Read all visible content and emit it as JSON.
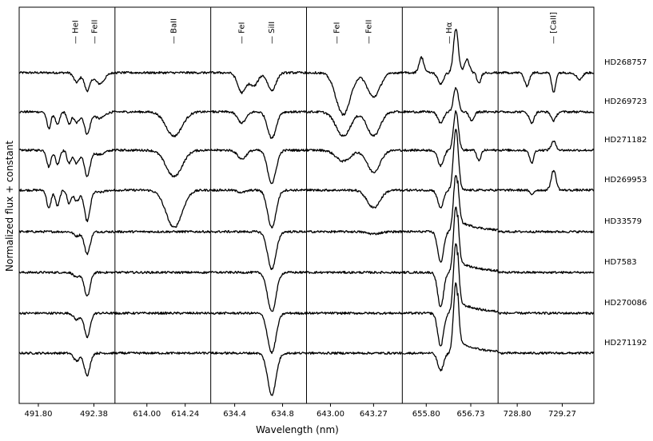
{
  "chart_data": {
    "type": "line",
    "xlabel": "Wavelength (nm)",
    "ylabel": "Normalized flux + constant",
    "grid": false,
    "stars": [
      "HD268757",
      "HD269723",
      "HD271182",
      "HD269953",
      "HD33579",
      "HD7583",
      "HD270086",
      "HD271192"
    ],
    "panels": [
      {
        "xlim": [
          491.6,
          492.6
        ],
        "ticks": [
          {
            "value": 491.8,
            "label": "491.80"
          },
          {
            "value": 492.38,
            "label": "492.38"
          }
        ],
        "lines": [
          {
            "label": "— HeI",
            "x": 492.19
          },
          {
            "label": "— FeII",
            "x": 492.39
          }
        ],
        "features": [
          {
            "center": 491.91,
            "width": 0.022,
            "depths": [
              0.0,
              0.38,
              0.38,
              0.42,
              0.0,
              0.0,
              0.0,
              0.0
            ]
          },
          {
            "center": 492.0,
            "width": 0.022,
            "depths": [
              0.0,
              0.3,
              0.32,
              0.36,
              0.0,
              0.0,
              0.0,
              0.0
            ]
          },
          {
            "center": 492.12,
            "width": 0.02,
            "depths": [
              0.0,
              0.28,
              0.3,
              0.3,
              0.0,
              0.0,
              0.0,
              0.0
            ]
          },
          {
            "center": 492.2,
            "width": 0.03,
            "depths": [
              0.22,
              0.25,
              0.3,
              0.25,
              0.1,
              0.12,
              0.15,
              0.18
            ]
          },
          {
            "center": 492.31,
            "width": 0.03,
            "depths": [
              0.4,
              0.5,
              0.6,
              0.7,
              0.5,
              0.55,
              0.55,
              0.5
            ]
          },
          {
            "center": 492.44,
            "width": 0.05,
            "depths": [
              0.25,
              0.15,
              0.1,
              0.05,
              0.0,
              0.0,
              0.0,
              0.0
            ]
          }
        ]
      },
      {
        "xlim": [
          613.8,
          614.4
        ],
        "ticks": [
          {
            "value": 614.0,
            "label": "614.00"
          },
          {
            "value": 614.24,
            "label": "614.24"
          }
        ],
        "lines": [
          {
            "label": "— BaII",
            "x": 614.17
          }
        ],
        "features": [
          {
            "center": 614.17,
            "width": 0.05,
            "depths": [
              0.0,
              0.55,
              0.6,
              0.85,
              0.0,
              0.0,
              0.0,
              0.0
            ]
          }
        ]
      },
      {
        "xlim": [
          634.2,
          635.0
        ],
        "ticks": [
          {
            "value": 634.4,
            "label": "634.4"
          },
          {
            "value": 634.8,
            "label": "634.8"
          }
        ],
        "lines": [
          {
            "label": "— FeI",
            "x": 634.46
          },
          {
            "label": "— SiII",
            "x": 634.71
          }
        ],
        "features": [
          {
            "center": 634.46,
            "width": 0.035,
            "depths": [
              0.45,
              0.25,
              0.2,
              0.05,
              0.0,
              0.0,
              0.0,
              0.0
            ]
          },
          {
            "center": 634.56,
            "width": 0.035,
            "depths": [
              0.3,
              0.0,
              0.0,
              0.0,
              0.0,
              0.0,
              0.0,
              0.0
            ]
          },
          {
            "center": 634.71,
            "width": 0.035,
            "depths": [
              0.4,
              0.6,
              0.75,
              0.85,
              0.85,
              0.9,
              0.9,
              0.95
            ]
          }
        ]
      },
      {
        "xlim": [
          642.85,
          643.45
        ],
        "ticks": [
          {
            "value": 643.0,
            "label": "643.00"
          },
          {
            "value": 643.27,
            "label": "643.27"
          }
        ],
        "lines": [
          {
            "label": "— FeI",
            "x": 643.04
          },
          {
            "label": "— FeII",
            "x": 643.24
          }
        ],
        "features": [
          {
            "center": 643.08,
            "width": 0.045,
            "depths": [
              0.95,
              0.55,
              0.25,
              0.0,
              0.0,
              0.0,
              0.0,
              0.0
            ]
          },
          {
            "center": 643.27,
            "width": 0.04,
            "depths": [
              0.55,
              0.55,
              0.5,
              0.4,
              0.05,
              0.0,
              0.0,
              0.0
            ]
          }
        ]
      },
      {
        "xlim": [
          655.3,
          657.3
        ],
        "ticks": [
          {
            "value": 655.8,
            "label": "655.80"
          },
          {
            "value": 656.73,
            "label": "656.73"
          }
        ],
        "lines": [
          {
            "label": "— Hα",
            "x": 656.28
          }
        ]
      },
      {
        "xlim": [
          728.6,
          729.6
        ],
        "ticks": [
          {
            "value": 728.8,
            "label": "728.80"
          },
          {
            "value": 729.27,
            "label": "729.27"
          }
        ],
        "lines": [
          {
            "label": "— [CaII]",
            "x": 729.18
          }
        ]
      }
    ]
  }
}
